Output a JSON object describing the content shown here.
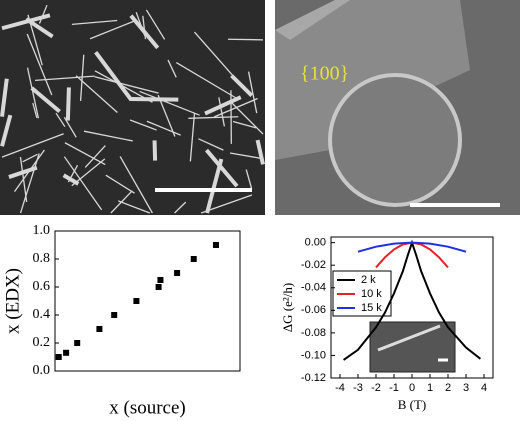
{
  "image_labels": {
    "facet": "{100}"
  },
  "chart_data": [
    {
      "type": "scatter",
      "xlabel": "x (source)",
      "ylabel": "x (EDX)",
      "color": "#000000",
      "x": [
        0.02,
        0.06,
        0.12,
        0.24,
        0.32,
        0.44,
        0.56,
        0.57,
        0.66,
        0.75,
        0.87
      ],
      "values": [
        0.1,
        0.13,
        0.2,
        0.3,
        0.4,
        0.5,
        0.6,
        0.65,
        0.7,
        0.8,
        0.9
      ],
      "xlim": [
        0,
        1
      ],
      "ylim": [
        0,
        1
      ],
      "yticks": [
        {
          "value": 0,
          "label": "0.0"
        },
        0.2,
        0.4,
        0.6,
        0.8,
        {
          "value": 1,
          "label": "1.0"
        }
      ]
    },
    {
      "type": "line",
      "xlabel": "B (T)",
      "ylabel": "ΔG (e²/h)",
      "legend": "upper-left",
      "xlim": [
        -4.5,
        4.5
      ],
      "ylim": [
        -0.12,
        0.005
      ],
      "xticks": [
        -4,
        -3,
        -2,
        -1,
        0,
        1,
        2,
        3,
        4
      ],
      "yticks": [
        {
          "value": 0,
          "label": "0.00"
        },
        {
          "value": -0.02,
          "label": "-0.02"
        },
        {
          "value": -0.04,
          "label": "-0.04"
        },
        {
          "value": -0.06,
          "label": "-0.06"
        },
        {
          "value": -0.08,
          "label": "-0.08"
        },
        {
          "value": -0.1,
          "label": "-0.10"
        },
        {
          "value": -0.12,
          "label": "-0.12"
        }
      ],
      "series": [
        {
          "name": "2 k",
          "color": "#000000",
          "x": [
            -3.8,
            -3,
            -2,
            -1.5,
            -1,
            -0.5,
            -0.25,
            0,
            0.25,
            0.5,
            1,
            1.5,
            2,
            3,
            3.8
          ],
          "values": [
            -0.104,
            -0.095,
            -0.075,
            -0.062,
            -0.045,
            -0.025,
            -0.012,
            0,
            -0.012,
            -0.025,
            -0.045,
            -0.062,
            -0.075,
            -0.093,
            -0.103
          ]
        },
        {
          "name": "10 k",
          "color": "#e8202a",
          "x": [
            -2,
            -1.5,
            -1,
            -0.5,
            0,
            0.5,
            1,
            1.5,
            2
          ],
          "values": [
            -0.022,
            -0.013,
            -0.006,
            -0.0015,
            0,
            -0.0015,
            -0.006,
            -0.013,
            -0.022
          ]
        },
        {
          "name": "15 k",
          "color": "#2030e0",
          "x": [
            -3,
            -2,
            -1,
            0,
            1,
            2,
            3
          ],
          "values": [
            -0.008,
            -0.0036,
            -0.0009,
            0,
            -0.0009,
            -0.0036,
            -0.008
          ]
        }
      ]
    }
  ]
}
